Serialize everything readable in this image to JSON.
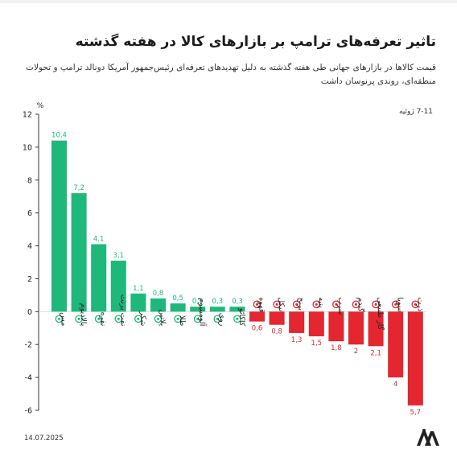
{
  "header": {
    "title": "تاثیر تعرفه‌های ترامپ بر بازارهای کالا در هفته گذشته",
    "subtitle": "قیمت کالاها در بازارهای جهانی طی هفته گذشته به دلیل تهدیدهای تعرفه‌ای رئیس‌جمهور آمریکا  دونالد ترامپ و تحولات منطقه‌ای، روندی پرنوسان داشت",
    "date_range": "7-11 ژوئیه"
  },
  "footer": {
    "date": "14.07.2025",
    "logo_alt": "AA"
  },
  "colors": {
    "positive": "#1db87a",
    "negative": "#e3262f",
    "axis": "#333333",
    "bg": "#ffffff"
  },
  "chart_data": {
    "type": "bar",
    "unit_label": "%",
    "ylim": [
      -6,
      12
    ],
    "yticks": [
      12,
      10,
      8,
      6,
      4,
      2,
      0,
      -2,
      -4,
      -6
    ],
    "grid": false,
    "categories": [
      "مس",
      "پالادیوم",
      "نقره",
      "نفت برنت",
      "شکر",
      "پلاتین",
      "طلا",
      "آلومینیوم",
      "روی",
      "کاکائو",
      "قهوه",
      "نیکل",
      "برنج",
      "پنبه",
      "سرب",
      "گندم",
      "گاز طبیعی",
      "سویا",
      "ذرت"
    ],
    "values": [
      10.4,
      7.2,
      4.1,
      3.1,
      1.1,
      0.8,
      0.5,
      0.3,
      0.3,
      0.3,
      -0.6,
      -0.8,
      -1.3,
      -1.5,
      -1.8,
      -2,
      -2.1,
      -4,
      -5.7
    ],
    "value_labels": [
      "10,4",
      "7,2",
      "4,1",
      "3,1",
      "1,1",
      "0,8",
      "0,5",
      "0,3",
      "0,3",
      "0,3",
      "0,6",
      "0,8",
      "1,3",
      "1,5",
      "1,8",
      "2",
      "2,1",
      "4",
      "5,7"
    ],
    "icons": [
      "copper-icon",
      "palladium-icon",
      "silver-icon",
      "brent-oil-icon",
      "sugar-icon",
      "platinum-icon",
      "gold-icon",
      "aluminum-icon",
      "zinc-icon",
      "cocoa-icon",
      "coffee-icon",
      "nickel-icon",
      "rice-icon",
      "cotton-icon",
      "lead-icon",
      "wheat-icon",
      "natural-gas-icon",
      "soybean-icon",
      "corn-icon"
    ]
  }
}
